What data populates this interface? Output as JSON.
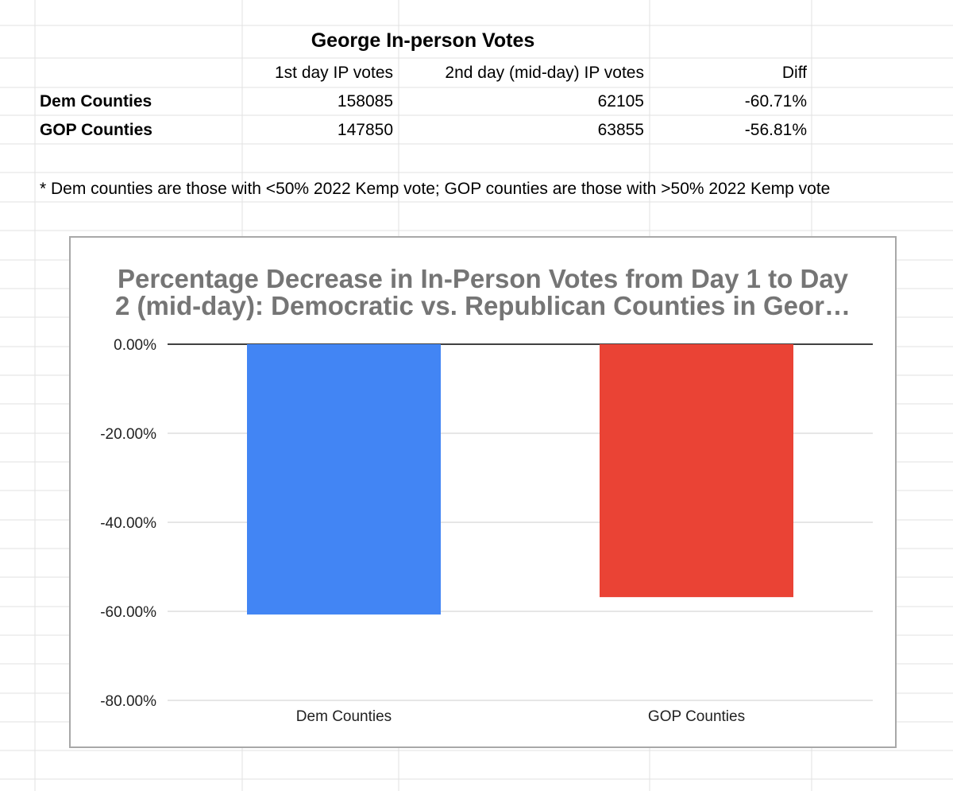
{
  "sheet": {
    "table_title": "George In-person Votes",
    "headers": [
      "",
      "1st day IP votes",
      "2nd day (mid-day) IP votes",
      "Diff"
    ],
    "rows": [
      {
        "label": "Dem Counties",
        "day1": "158085",
        "day2": "62105",
        "diff": "-60.71%"
      },
      {
        "label": "GOP Counties",
        "day1": "147850",
        "day2": "63855",
        "diff": "-56.81%"
      }
    ],
    "footnote": "* Dem counties are those with <50% 2022 Kemp vote; GOP counties are those with >50% 2022 Kemp vote"
  },
  "chart_data": {
    "type": "bar",
    "title_lines": [
      "Percentage Decrease in In-Person Votes from Day 1 to Day",
      "2 (mid-day): Democratic vs. Republican Counties in Geor…"
    ],
    "categories": [
      "Dem Counties",
      "GOP Counties"
    ],
    "values": [
      -60.71,
      -56.81
    ],
    "colors": [
      "#4285f4",
      "#ea4335"
    ],
    "ylim": [
      -80,
      0
    ],
    "yticks": [
      0,
      -20,
      -40,
      -60,
      -80
    ],
    "ytick_labels": [
      "0.00%",
      "-20.00%",
      "-40.00%",
      "-60.00%",
      "-80.00%"
    ],
    "grid": true,
    "legend": "none",
    "title_color": "#757575",
    "grid_color": "#cccccc"
  }
}
